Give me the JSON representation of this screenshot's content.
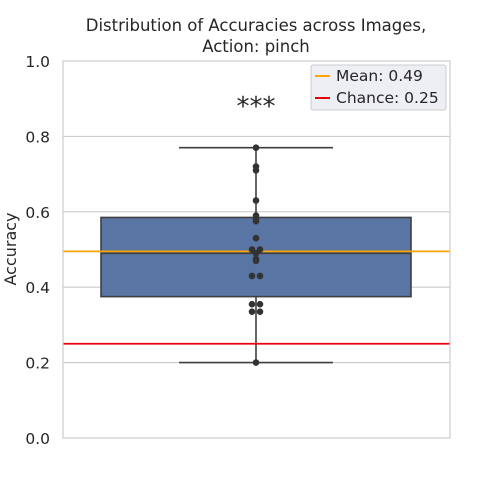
{
  "chart_data": {
    "type": "box",
    "title": [
      "Distribution of Accuracies across Images,",
      "Action: pinch"
    ],
    "xlabel": "",
    "ylabel": "Accuracy",
    "ylim": [
      0,
      1
    ],
    "yticks": [
      0.0,
      0.2,
      0.4,
      0.6,
      0.8,
      1.0
    ],
    "ytick_labels": [
      "0.0",
      "0.2",
      "0.4",
      "0.6",
      "0.8",
      "1.0"
    ],
    "grid": "horizontal",
    "box": {
      "whisker_low": 0.2,
      "q1": 0.375,
      "median": 0.49,
      "q3": 0.585,
      "whisker_high": 0.77,
      "color": "#5875a4"
    },
    "points": [
      0.77,
      0.72,
      0.71,
      0.63,
      0.59,
      0.58,
      0.575,
      0.53,
      0.5,
      0.5,
      0.49,
      0.475,
      0.47,
      0.43,
      0.43,
      0.355,
      0.355,
      0.335,
      0.335,
      0.2
    ],
    "reference_lines": [
      {
        "name": "Mean: 0.49",
        "value": 0.495,
        "color": "#ffa500"
      },
      {
        "name": "Chance: 0.25",
        "value": 0.25,
        "color": "#e8000b"
      }
    ],
    "annotation": "***",
    "legend_position": "top-right"
  }
}
